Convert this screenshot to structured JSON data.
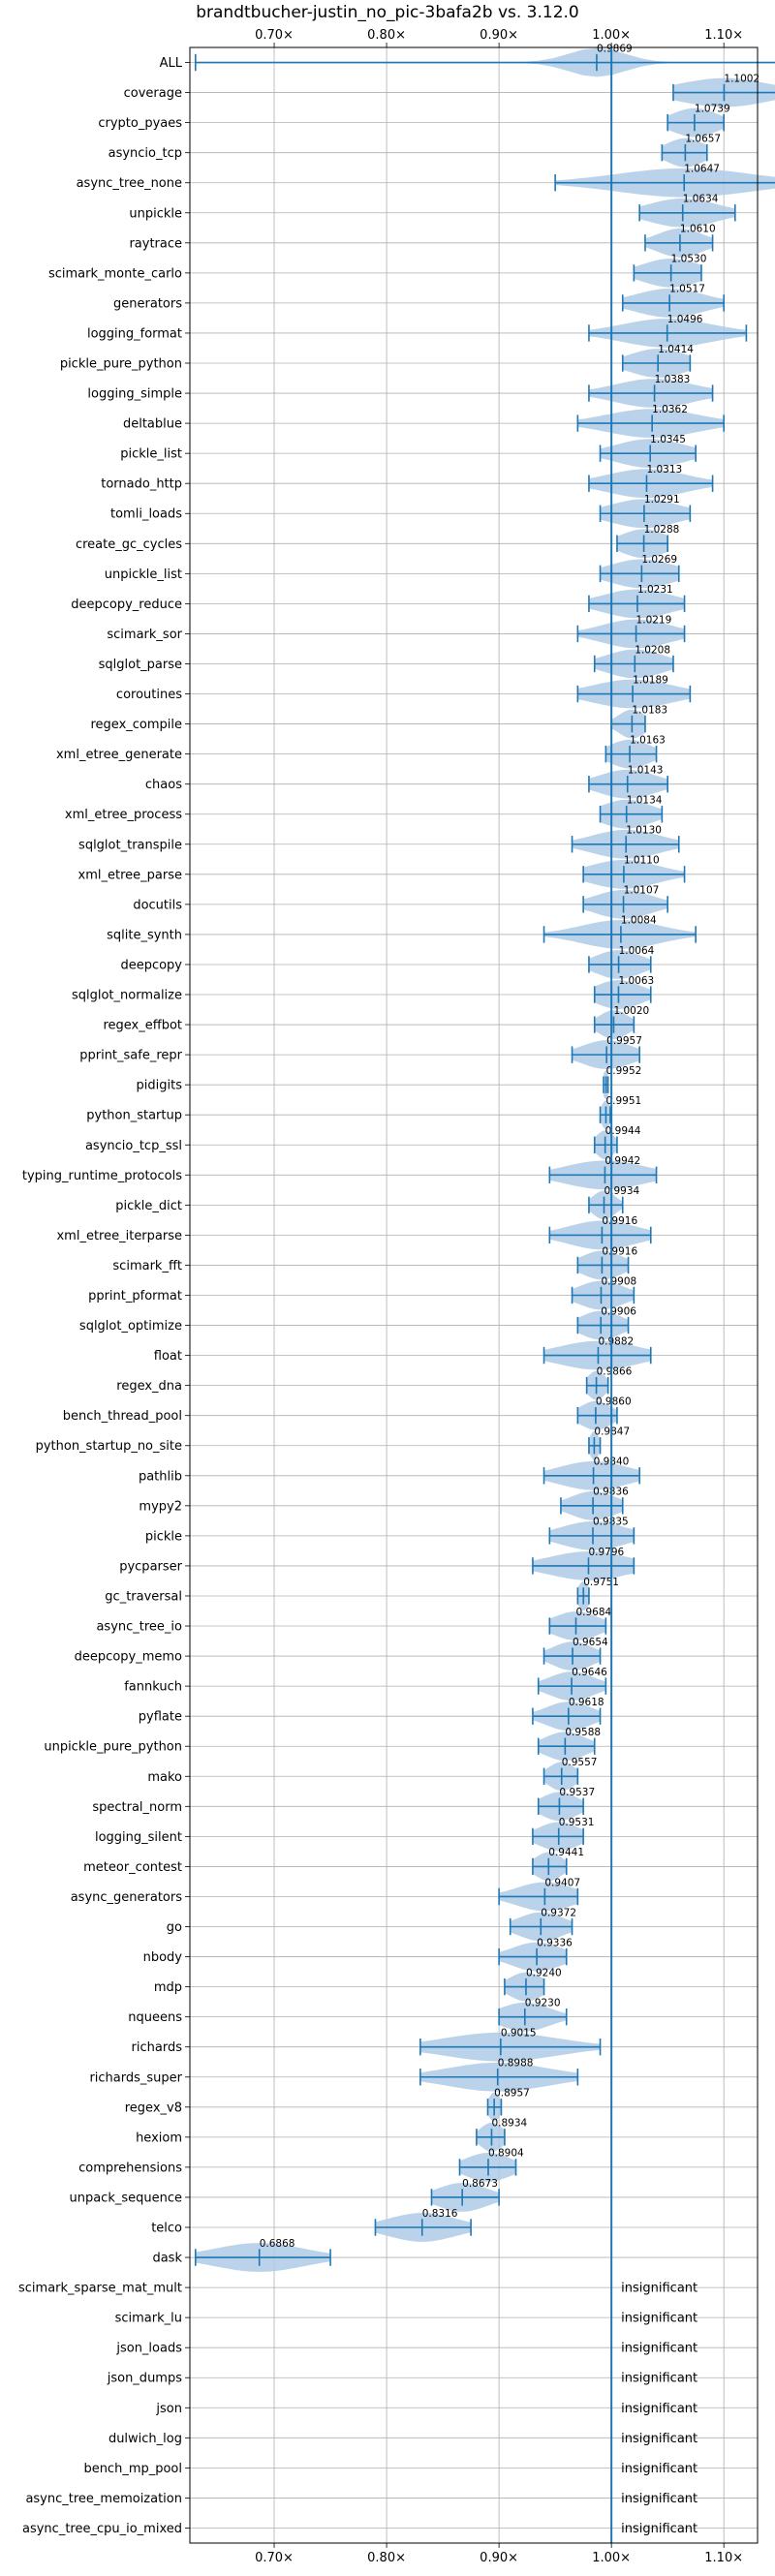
{
  "chart_data": {
    "type": "violin",
    "title": "brandtbucher-justin_no_pic-3bafa2b vs. 3.12.0",
    "xlabel": "",
    "ylabel": "",
    "xlim": [
      0.625,
      1.13
    ],
    "x_ticks": [
      0.7,
      0.8,
      0.9,
      1.0,
      1.1
    ],
    "x_tick_labels": [
      "0.70×",
      "0.80×",
      "0.90×",
      "1.00×",
      "1.10×"
    ],
    "grid": true,
    "reference_line": 1.0,
    "accent_color": "#1f77b4",
    "violin_color": "#aecbe8",
    "benchmarks": [
      {
        "name": "ALL",
        "value": 0.9869,
        "min": 0.63,
        "max": 1.16,
        "spread": 0.025
      },
      {
        "name": "coverage",
        "value": 1.1002,
        "min": 1.055,
        "max": 1.16,
        "spread": 0.04
      },
      {
        "name": "crypto_pyaes",
        "value": 1.0739,
        "min": 1.05,
        "max": 1.1,
        "spread": 0.02
      },
      {
        "name": "asyncio_tcp",
        "value": 1.0657,
        "min": 1.045,
        "max": 1.085,
        "spread": 0.017
      },
      {
        "name": "async_tree_none",
        "value": 1.0647,
        "min": 0.95,
        "max": 1.15,
        "spread": 0.06
      },
      {
        "name": "unpickle",
        "value": 1.0634,
        "min": 1.025,
        "max": 1.11,
        "spread": 0.03
      },
      {
        "name": "raytrace",
        "value": 1.061,
        "min": 1.03,
        "max": 1.09,
        "spread": 0.02
      },
      {
        "name": "scimark_monte_carlo",
        "value": 1.053,
        "min": 1.02,
        "max": 1.08,
        "spread": 0.025
      },
      {
        "name": "generators",
        "value": 1.0517,
        "min": 1.01,
        "max": 1.1,
        "spread": 0.03
      },
      {
        "name": "logging_format",
        "value": 1.0496,
        "min": 0.98,
        "max": 1.12,
        "spread": 0.04
      },
      {
        "name": "pickle_pure_python",
        "value": 1.0414,
        "min": 1.01,
        "max": 1.07,
        "spread": 0.025
      },
      {
        "name": "logging_simple",
        "value": 1.0383,
        "min": 0.98,
        "max": 1.09,
        "spread": 0.035
      },
      {
        "name": "deltablue",
        "value": 1.0362,
        "min": 0.97,
        "max": 1.1,
        "spread": 0.04
      },
      {
        "name": "pickle_list",
        "value": 1.0345,
        "min": 0.99,
        "max": 1.075,
        "spread": 0.03
      },
      {
        "name": "tornado_http",
        "value": 1.0313,
        "min": 0.98,
        "max": 1.09,
        "spread": 0.035
      },
      {
        "name": "tomli_loads",
        "value": 1.0291,
        "min": 0.99,
        "max": 1.07,
        "spread": 0.03
      },
      {
        "name": "create_gc_cycles",
        "value": 1.0288,
        "min": 1.005,
        "max": 1.05,
        "spread": 0.02
      },
      {
        "name": "unpickle_list",
        "value": 1.0269,
        "min": 0.99,
        "max": 1.06,
        "spread": 0.028
      },
      {
        "name": "deepcopy_reduce",
        "value": 1.0231,
        "min": 0.98,
        "max": 1.065,
        "spread": 0.03
      },
      {
        "name": "scimark_sor",
        "value": 1.0219,
        "min": 0.97,
        "max": 1.065,
        "spread": 0.03
      },
      {
        "name": "sqlglot_parse",
        "value": 1.0208,
        "min": 0.985,
        "max": 1.055,
        "spread": 0.025
      },
      {
        "name": "coroutines",
        "value": 1.0189,
        "min": 0.97,
        "max": 1.07,
        "spread": 0.035
      },
      {
        "name": "regex_compile",
        "value": 1.0183,
        "min": 1.0,
        "max": 1.03,
        "spread": 0.012
      },
      {
        "name": "xml_etree_generate",
        "value": 1.0163,
        "min": 0.995,
        "max": 1.04,
        "spread": 0.018
      },
      {
        "name": "chaos",
        "value": 1.0143,
        "min": 0.98,
        "max": 1.05,
        "spread": 0.025
      },
      {
        "name": "xml_etree_process",
        "value": 1.0134,
        "min": 0.99,
        "max": 1.045,
        "spread": 0.022
      },
      {
        "name": "sqlglot_transpile",
        "value": 1.013,
        "min": 0.965,
        "max": 1.06,
        "spread": 0.03
      },
      {
        "name": "xml_etree_parse",
        "value": 1.011,
        "min": 0.975,
        "max": 1.065,
        "spread": 0.03
      },
      {
        "name": "docutils",
        "value": 1.0107,
        "min": 0.975,
        "max": 1.05,
        "spread": 0.025
      },
      {
        "name": "sqlite_synth",
        "value": 1.0084,
        "min": 0.94,
        "max": 1.075,
        "spread": 0.035
      },
      {
        "name": "deepcopy",
        "value": 1.0064,
        "min": 0.98,
        "max": 1.035,
        "spread": 0.02
      },
      {
        "name": "sqlglot_normalize",
        "value": 1.0063,
        "min": 0.985,
        "max": 1.035,
        "spread": 0.02
      },
      {
        "name": "regex_effbot",
        "value": 1.002,
        "min": 0.985,
        "max": 1.02,
        "spread": 0.013
      },
      {
        "name": "pprint_safe_repr",
        "value": 0.9957,
        "min": 0.965,
        "max": 1.025,
        "spread": 0.022
      },
      {
        "name": "pidigits",
        "value": 0.9952,
        "min": 0.993,
        "max": 0.997,
        "spread": 0.003
      },
      {
        "name": "python_startup",
        "value": 0.9951,
        "min": 0.99,
        "max": 0.999,
        "spread": 0.004
      },
      {
        "name": "asyncio_tcp_ssl",
        "value": 0.9944,
        "min": 0.985,
        "max": 1.005,
        "spread": 0.008
      },
      {
        "name": "typing_runtime_protocols",
        "value": 0.9942,
        "min": 0.945,
        "max": 1.04,
        "spread": 0.035
      },
      {
        "name": "pickle_dict",
        "value": 0.9934,
        "min": 0.98,
        "max": 1.01,
        "spread": 0.01
      },
      {
        "name": "xml_etree_iterparse",
        "value": 0.9916,
        "min": 0.945,
        "max": 1.035,
        "spread": 0.03
      },
      {
        "name": "scimark_fft",
        "value": 0.9916,
        "min": 0.97,
        "max": 1.015,
        "spread": 0.018
      },
      {
        "name": "pprint_pformat",
        "value": 0.9908,
        "min": 0.965,
        "max": 1.02,
        "spread": 0.02
      },
      {
        "name": "sqlglot_optimize",
        "value": 0.9906,
        "min": 0.97,
        "max": 1.015,
        "spread": 0.018
      },
      {
        "name": "float",
        "value": 0.9882,
        "min": 0.94,
        "max": 1.035,
        "spread": 0.035
      },
      {
        "name": "regex_dna",
        "value": 0.9866,
        "min": 0.978,
        "max": 0.997,
        "spread": 0.008
      },
      {
        "name": "bench_thread_pool",
        "value": 0.986,
        "min": 0.97,
        "max": 1.005,
        "spread": 0.014
      },
      {
        "name": "python_startup_no_site",
        "value": 0.9847,
        "min": 0.98,
        "max": 0.99,
        "spread": 0.004
      },
      {
        "name": "pathlib",
        "value": 0.984,
        "min": 0.94,
        "max": 1.025,
        "spread": 0.03
      },
      {
        "name": "mypy2",
        "value": 0.9836,
        "min": 0.955,
        "max": 1.01,
        "spread": 0.02
      },
      {
        "name": "pickle",
        "value": 0.9835,
        "min": 0.945,
        "max": 1.02,
        "spread": 0.028
      },
      {
        "name": "pycparser",
        "value": 0.9796,
        "min": 0.93,
        "max": 1.02,
        "spread": 0.035
      },
      {
        "name": "gc_traversal",
        "value": 0.9751,
        "min": 0.97,
        "max": 0.98,
        "spread": 0.005
      },
      {
        "name": "async_tree_io",
        "value": 0.9684,
        "min": 0.945,
        "max": 0.995,
        "spread": 0.02
      },
      {
        "name": "deepcopy_memo",
        "value": 0.9654,
        "min": 0.94,
        "max": 0.99,
        "spread": 0.018
      },
      {
        "name": "fannkuch",
        "value": 0.9646,
        "min": 0.935,
        "max": 0.995,
        "spread": 0.02
      },
      {
        "name": "pyflate",
        "value": 0.9618,
        "min": 0.93,
        "max": 0.99,
        "spread": 0.02
      },
      {
        "name": "unpickle_pure_python",
        "value": 0.9588,
        "min": 0.935,
        "max": 0.985,
        "spread": 0.018
      },
      {
        "name": "mako",
        "value": 0.9557,
        "min": 0.94,
        "max": 0.97,
        "spread": 0.012
      },
      {
        "name": "spectral_norm",
        "value": 0.9537,
        "min": 0.935,
        "max": 0.975,
        "spread": 0.016
      },
      {
        "name": "logging_silent",
        "value": 0.9531,
        "min": 0.93,
        "max": 0.975,
        "spread": 0.018
      },
      {
        "name": "meteor_contest",
        "value": 0.9441,
        "min": 0.93,
        "max": 0.96,
        "spread": 0.012
      },
      {
        "name": "async_generators",
        "value": 0.9407,
        "min": 0.9,
        "max": 0.97,
        "spread": 0.025
      },
      {
        "name": "go",
        "value": 0.9372,
        "min": 0.91,
        "max": 0.965,
        "spread": 0.02
      },
      {
        "name": "nbody",
        "value": 0.9336,
        "min": 0.9,
        "max": 0.96,
        "spread": 0.022
      },
      {
        "name": "mdp",
        "value": 0.924,
        "min": 0.905,
        "max": 0.94,
        "spread": 0.015
      },
      {
        "name": "nqueens",
        "value": 0.923,
        "min": 0.9,
        "max": 0.96,
        "spread": 0.022
      },
      {
        "name": "richards",
        "value": 0.9015,
        "min": 0.83,
        "max": 0.99,
        "spread": 0.05
      },
      {
        "name": "richards_super",
        "value": 0.8988,
        "min": 0.83,
        "max": 0.97,
        "spread": 0.045
      },
      {
        "name": "regex_v8",
        "value": 0.8957,
        "min": 0.89,
        "max": 0.902,
        "spread": 0.005
      },
      {
        "name": "hexiom",
        "value": 0.8934,
        "min": 0.88,
        "max": 0.905,
        "spread": 0.01
      },
      {
        "name": "comprehensions",
        "value": 0.8904,
        "min": 0.865,
        "max": 0.915,
        "spread": 0.02
      },
      {
        "name": "unpack_sequence",
        "value": 0.8673,
        "min": 0.84,
        "max": 0.9,
        "spread": 0.022
      },
      {
        "name": "telco",
        "value": 0.8316,
        "min": 0.79,
        "max": 0.875,
        "spread": 0.03
      },
      {
        "name": "dask",
        "value": 0.6868,
        "min": 0.63,
        "max": 0.75,
        "spread": 0.04
      },
      {
        "name": "scimark_sparse_mat_mult",
        "insignificant": true
      },
      {
        "name": "scimark_lu",
        "insignificant": true
      },
      {
        "name": "json_loads",
        "insignificant": true
      },
      {
        "name": "json_dumps",
        "insignificant": true
      },
      {
        "name": "json",
        "insignificant": true
      },
      {
        "name": "dulwich_log",
        "insignificant": true
      },
      {
        "name": "bench_mp_pool",
        "insignificant": true
      },
      {
        "name": "async_tree_memoization",
        "insignificant": true
      },
      {
        "name": "async_tree_cpu_io_mixed",
        "insignificant": true
      }
    ],
    "insignificant_label": "insignificant"
  }
}
